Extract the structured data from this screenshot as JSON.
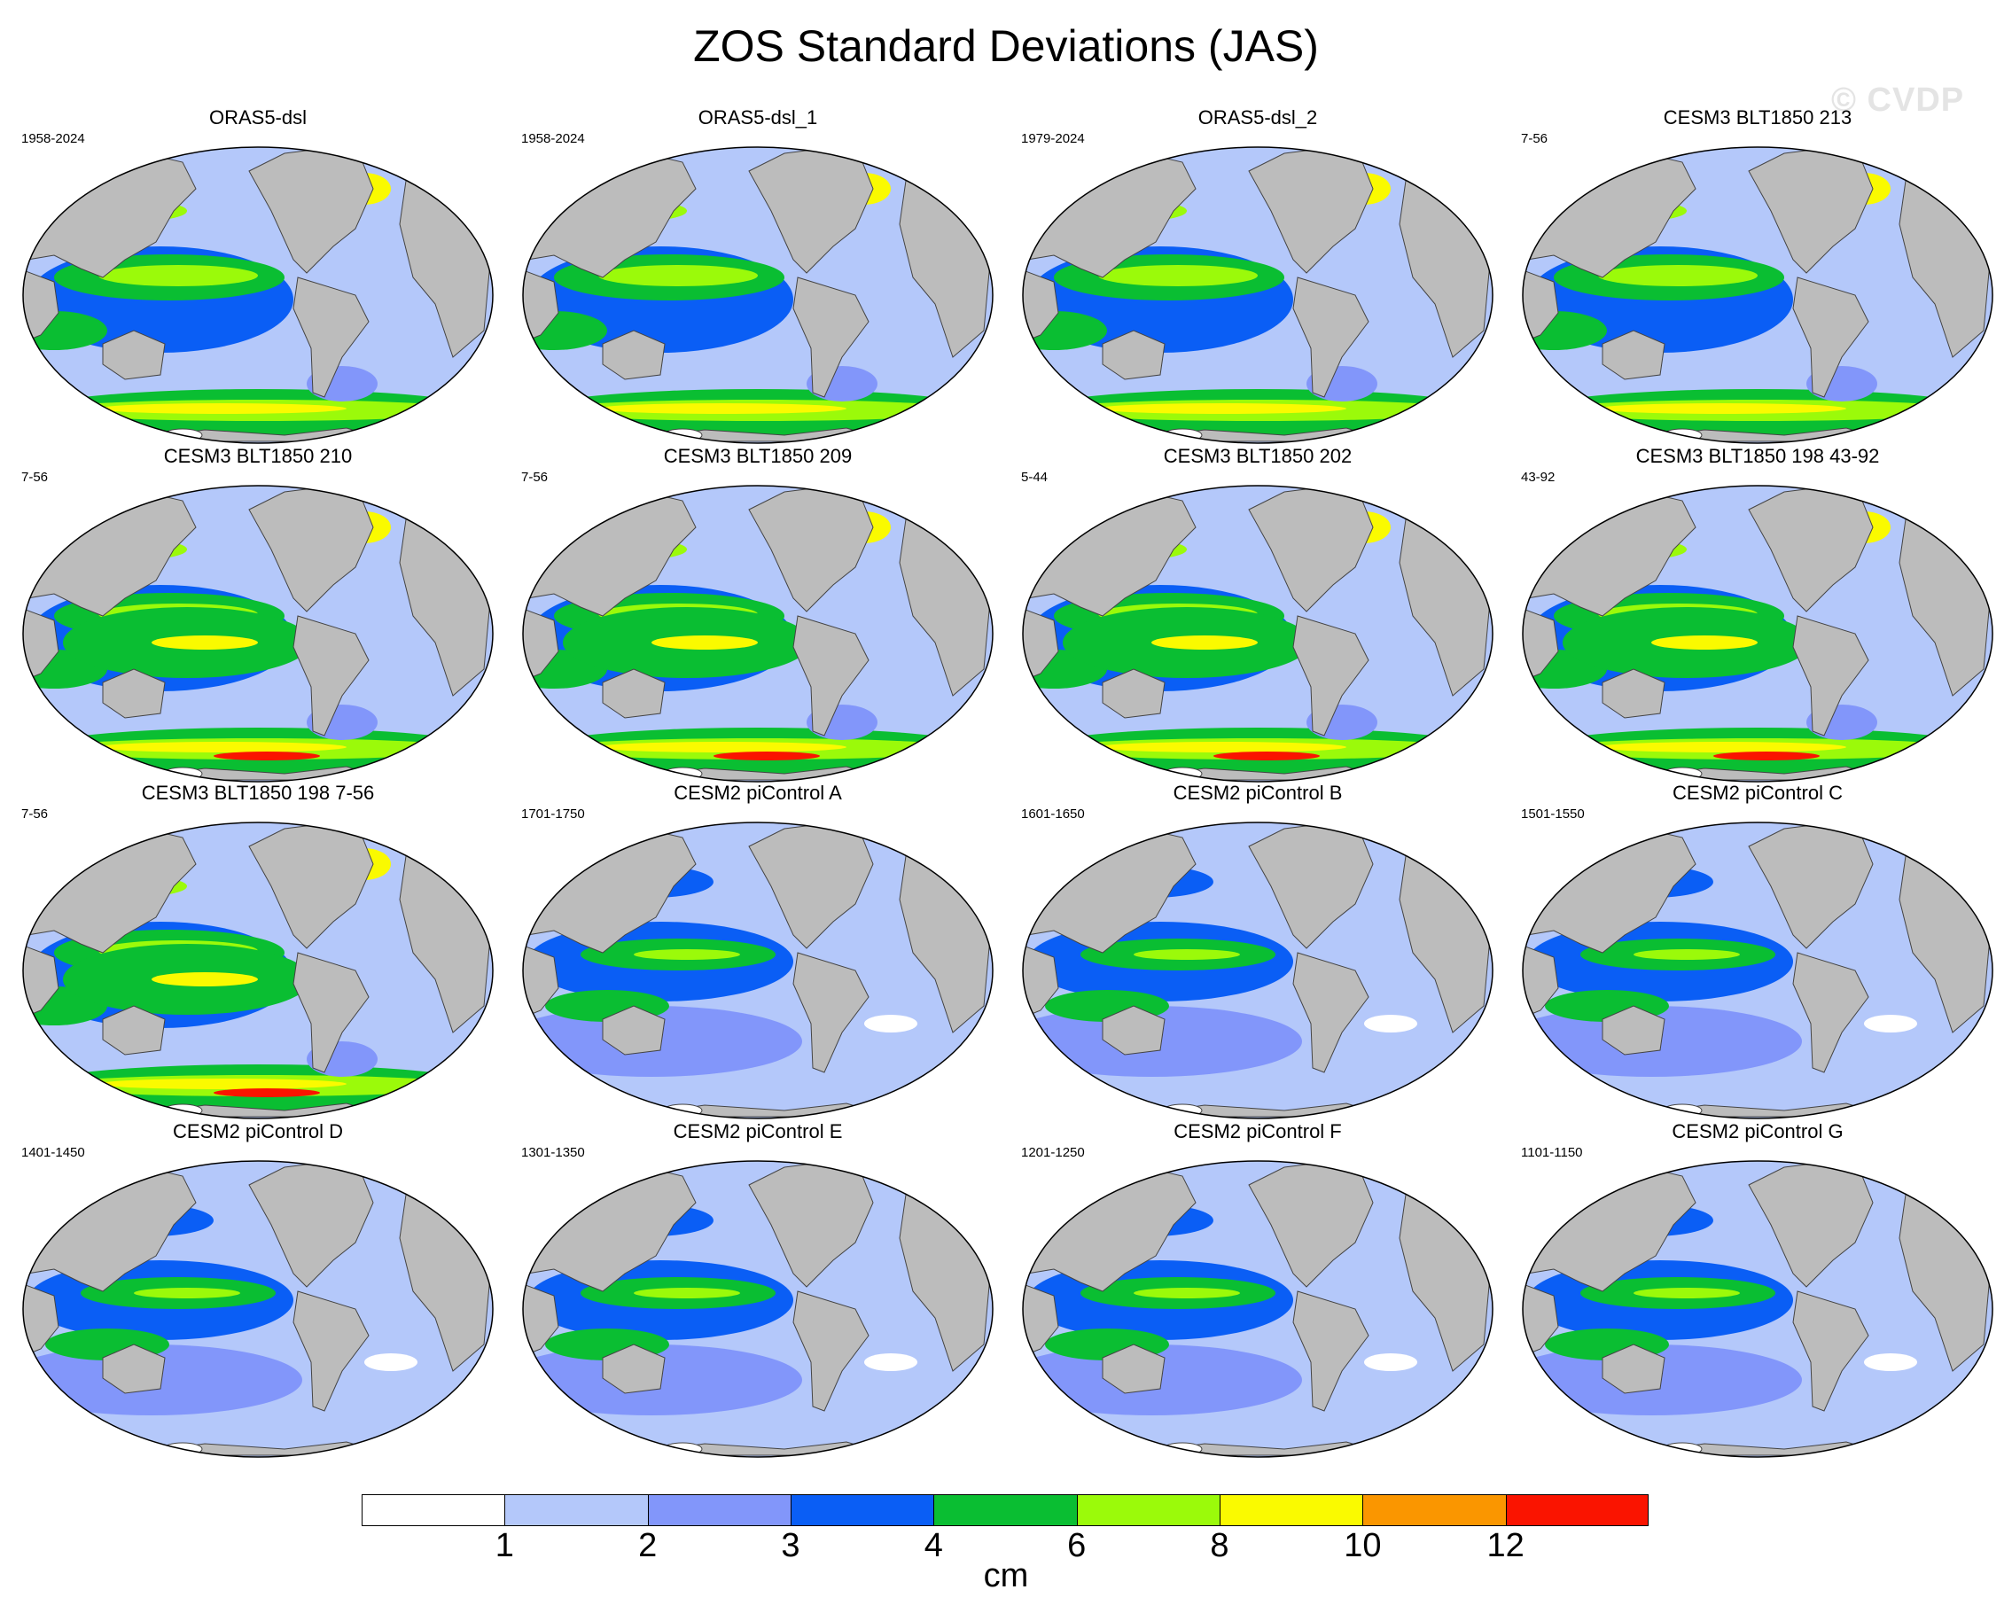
{
  "title": "ZOS Standard Deviations (JAS)",
  "watermark": "© CVDP",
  "panels": [
    {
      "name": "ORAS5-dsl",
      "years": "1958-2024",
      "level": 3
    },
    {
      "name": "ORAS5-dsl_1",
      "years": "1958-2024",
      "level": 3
    },
    {
      "name": "ORAS5-dsl_2",
      "years": "1979-2024",
      "level": 3
    },
    {
      "name": "CESM3 BLT1850 213",
      "years": "7-56",
      "level": 3
    },
    {
      "name": "CESM3 BLT1850 210",
      "years": "7-56",
      "level": 4
    },
    {
      "name": "CESM3 BLT1850 209",
      "years": "7-56",
      "level": 4
    },
    {
      "name": "CESM3 BLT1850 202",
      "years": "5-44",
      "level": 4
    },
    {
      "name": "CESM3 BLT1850 198 43-92",
      "years": "43-92",
      "level": 4
    },
    {
      "name": "CESM3 BLT1850 198 7-56",
      "years": "7-56",
      "level": 4
    },
    {
      "name": "CESM2 piControl A",
      "years": "1701-1750",
      "level": 1
    },
    {
      "name": "CESM2 piControl B",
      "years": "1601-1650",
      "level": 1
    },
    {
      "name": "CESM2 piControl C",
      "years": "1501-1550",
      "level": 1
    },
    {
      "name": "CESM2 piControl D",
      "years": "1401-1450",
      "level": 1
    },
    {
      "name": "CESM2 piControl E",
      "years": "1301-1350",
      "level": 1
    },
    {
      "name": "CESM2 piControl F",
      "years": "1201-1250",
      "level": 1
    },
    {
      "name": "CESM2 piControl G",
      "years": "1101-1150",
      "level": 1
    }
  ],
  "colorbar": {
    "units": "cm",
    "ticks": [
      "1",
      "2",
      "3",
      "4",
      "6",
      "8",
      "10",
      "12"
    ],
    "colors": [
      "#ffffff",
      "#b4c8fa",
      "#8296fa",
      "#0a5ef5",
      "#0abe32",
      "#9bfa0a",
      "#fafa00",
      "#fa9600",
      "#fa1400"
    ]
  },
  "land_color": "#bcbcbc",
  "ocean_base_colors": [
    "#b4c8fa",
    "#8296fa"
  ]
}
